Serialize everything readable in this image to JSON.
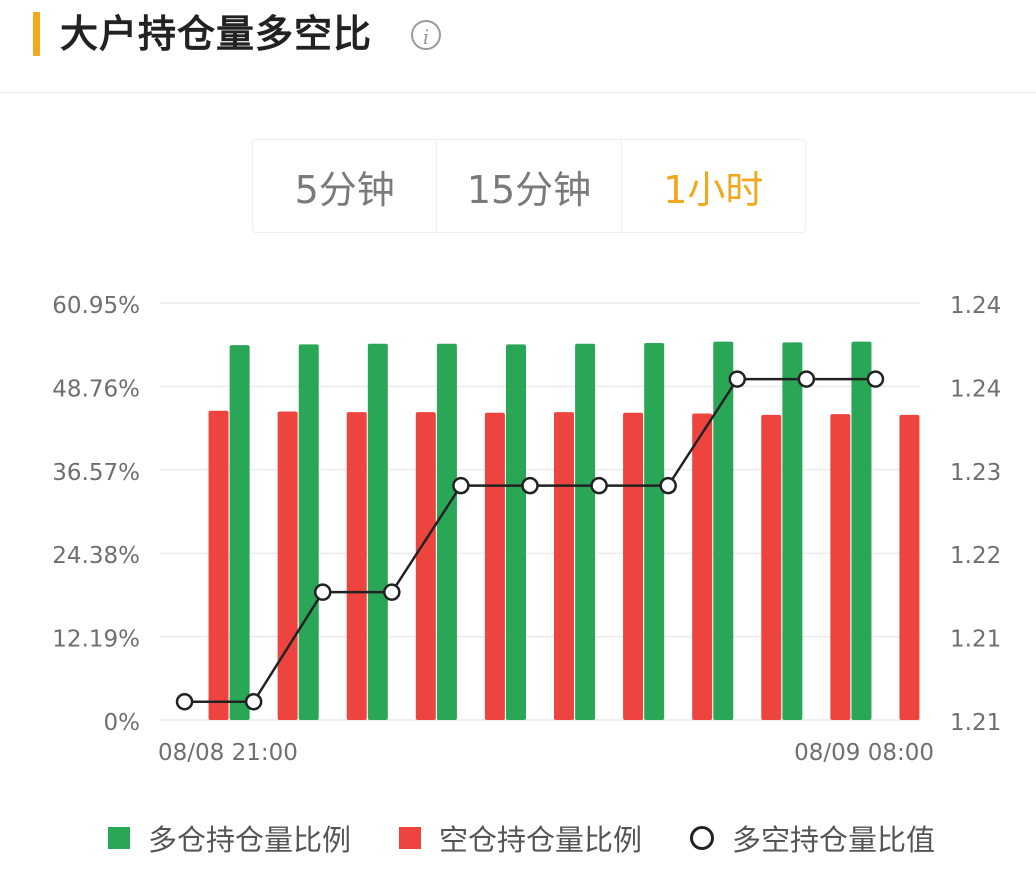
{
  "header": {
    "title": "大户持仓量多空比",
    "info_icon": "info-icon"
  },
  "tabs": [
    {
      "label": "5分钟",
      "active": false
    },
    {
      "label": "15分钟",
      "active": false
    },
    {
      "label": "1小时",
      "active": true
    }
  ],
  "colors": {
    "accent": "#f2a81d",
    "long": "#2aa657",
    "short": "#ee4440",
    "line": "#222222"
  },
  "chart_data": {
    "type": "bar",
    "categories": [
      "08/08 21:00",
      "",
      "",
      "",
      "",
      "",
      "",
      "",
      "",
      "",
      "08/09 08:00"
    ],
    "x_tick_labels": [
      "08/08 21:00",
      "08/09 08:00"
    ],
    "series": [
      {
        "name": "多仓持仓量比例",
        "type": "bar",
        "axis": "left",
        "values": [
          null,
          54.8,
          54.9,
          55.0,
          55.0,
          54.9,
          55.0,
          55.1,
          55.3,
          55.2,
          55.3
        ]
      },
      {
        "name": "空仓持仓量比例",
        "type": "bar",
        "axis": "left",
        "values": [
          45.2,
          45.1,
          45.0,
          45.0,
          44.9,
          45.0,
          44.9,
          44.8,
          44.6,
          44.7,
          44.6
        ]
      },
      {
        "name": "多空持仓量比值",
        "type": "line",
        "axis": "right",
        "values": [
          1.2064,
          1.2064,
          1.2172,
          1.2172,
          1.2277,
          1.2277,
          1.2277,
          1.2277,
          1.2382,
          1.2382,
          1.2382
        ]
      }
    ],
    "y_left_ticks": [
      "0%",
      "12.19%",
      "24.38%",
      "36.57%",
      "48.76%",
      "60.95%"
    ],
    "ylim_left": [
      0,
      60.95
    ],
    "y_right_ticks": [
      "1.21",
      "1.21",
      "1.22",
      "1.23",
      "1.24",
      "1.24"
    ],
    "ylim_right": [
      1.2046,
      1.2457
    ],
    "grid": true,
    "legend_position": "bottom"
  },
  "legend": {
    "items": [
      {
        "label": "多仓持仓量比例",
        "marker": "square",
        "color": "#2aa657"
      },
      {
        "label": "空仓持仓量比例",
        "marker": "square",
        "color": "#ee4440"
      },
      {
        "label": "多空持仓量比值",
        "marker": "circle",
        "color": "#222222"
      }
    ]
  }
}
